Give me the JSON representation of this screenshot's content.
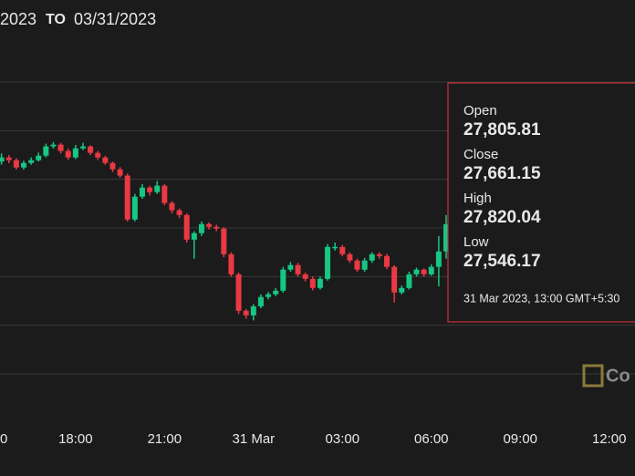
{
  "chart_data": {
    "type": "candlestick",
    "date_range": {
      "from": "2023",
      "separator": "TO",
      "to": "03/31/2023"
    },
    "x": [
      15.5,
      15.75,
      16,
      16.25,
      16.5,
      16.75,
      17,
      17.25,
      17.5,
      17.75,
      18,
      18.25,
      18.5,
      18.75,
      19,
      19.25,
      19.5,
      19.75,
      20,
      20.25,
      20.5,
      20.75,
      21,
      21.25,
      21.5,
      21.75,
      22,
      22.25,
      22.5,
      22.75,
      23,
      23.25,
      23.5,
      23.75,
      24,
      24.25,
      24.5,
      24.75,
      25,
      25.25,
      25.5,
      25.75,
      26,
      26.25,
      26.5,
      26.75,
      27,
      27.25,
      27.5,
      27.75,
      28,
      28.25,
      28.5,
      28.75,
      29,
      29.25,
      29.5,
      29.75,
      30,
      30.25,
      30.5
    ],
    "open": [
      28160,
      28185,
      28168,
      28123,
      28151,
      28168,
      28196,
      28253,
      28264,
      28225,
      28185,
      28241,
      28253,
      28213,
      28185,
      28151,
      28112,
      28073,
      27802,
      27943,
      27999,
      27971,
      28011,
      27904,
      27859,
      27830,
      27678,
      27718,
      27774,
      27757,
      27746,
      27588,
      27464,
      27239,
      27211,
      27267,
      27324,
      27341,
      27363,
      27493,
      27521,
      27464,
      27436,
      27380,
      27436,
      27633,
      27633,
      27588,
      27549,
      27493,
      27549,
      27588,
      27577,
      27510,
      27352,
      27380,
      27464,
      27493,
      27464,
      27510,
      27605
    ],
    "high": [
      28210,
      28200,
      28180,
      28165,
      28185,
      28215,
      28270,
      28280,
      28275,
      28240,
      28262,
      28275,
      28260,
      28225,
      28195,
      28160,
      28125,
      28085,
      27960,
      28020,
      28010,
      28040,
      28020,
      27915,
      27870,
      27840,
      27730,
      27790,
      27785,
      27770,
      27755,
      27600,
      27475,
      27250,
      27280,
      27340,
      27355,
      27380,
      27510,
      27540,
      27535,
      27475,
      27450,
      27450,
      27650,
      27660,
      27645,
      27600,
      27560,
      27565,
      27600,
      27600,
      27590,
      27520,
      27395,
      27480,
      27505,
      27500,
      27525,
      27700,
      27830
    ],
    "low": [
      28140,
      28150,
      28110,
      28110,
      28140,
      28160,
      28185,
      28240,
      28210,
      28170,
      28175,
      28230,
      28200,
      28170,
      28140,
      28095,
      28060,
      27790,
      27790,
      27930,
      27950,
      27960,
      27890,
      27840,
      27810,
      27660,
      27560,
      27700,
      27740,
      27730,
      27570,
      27450,
      27220,
      27190,
      27180,
      27255,
      27310,
      27330,
      27350,
      27480,
      27450,
      27420,
      27365,
      27370,
      27425,
      27610,
      27575,
      27535,
      27480,
      27480,
      27535,
      27560,
      27495,
      27290,
      27340,
      27370,
      27450,
      27450,
      27455,
      27390,
      27560
    ],
    "close": [
      28185,
      28168,
      28123,
      28151,
      28168,
      28196,
      28253,
      28264,
      28225,
      28185,
      28241,
      28253,
      28213,
      28185,
      28151,
      28112,
      28073,
      27802,
      27943,
      27999,
      27971,
      28011,
      27904,
      27859,
      27830,
      27678,
      27718,
      27774,
      27757,
      27746,
      27588,
      27464,
      27239,
      27211,
      27267,
      27324,
      27341,
      27363,
      27493,
      27521,
      27464,
      27436,
      27380,
      27436,
      27633,
      27633,
      27588,
      27549,
      27493,
      27549,
      27588,
      27577,
      27510,
      27352,
      27380,
      27464,
      27493,
      27464,
      27510,
      27605,
      27774
    ],
    "up_color": "#16c784",
    "down_color": "#ea3943",
    "xlim": [
      15.45,
      36.87
    ],
    "xticks": [
      {
        "value": 15,
        "label": "0"
      },
      {
        "value": 18,
        "label": "18:00"
      },
      {
        "value": 21,
        "label": "21:00"
      },
      {
        "value": 24,
        "label": "31 Mar"
      },
      {
        "value": 27,
        "label": "03:00"
      },
      {
        "value": 30,
        "label": "06:00"
      },
      {
        "value": 33,
        "label": "09:00"
      },
      {
        "value": 36,
        "label": "12:00"
      }
    ],
    "ylim": [
      26850,
      28650
    ],
    "yticks": [
      26850,
      27150,
      27450,
      27750,
      28050,
      28350,
      28650
    ],
    "ytick_labels_shown": false,
    "grid": true,
    "tooltip": {
      "fields": [
        {
          "label": "Open",
          "value": "27,805.81"
        },
        {
          "label": "Close",
          "value": "27,661.15"
        },
        {
          "label": "High",
          "value": "27,820.04"
        },
        {
          "label": "Low",
          "value": "27,546.17"
        }
      ],
      "timestamp": "31 Mar 2023, 13:00 GMT+5:30"
    },
    "watermark": "Co"
  }
}
